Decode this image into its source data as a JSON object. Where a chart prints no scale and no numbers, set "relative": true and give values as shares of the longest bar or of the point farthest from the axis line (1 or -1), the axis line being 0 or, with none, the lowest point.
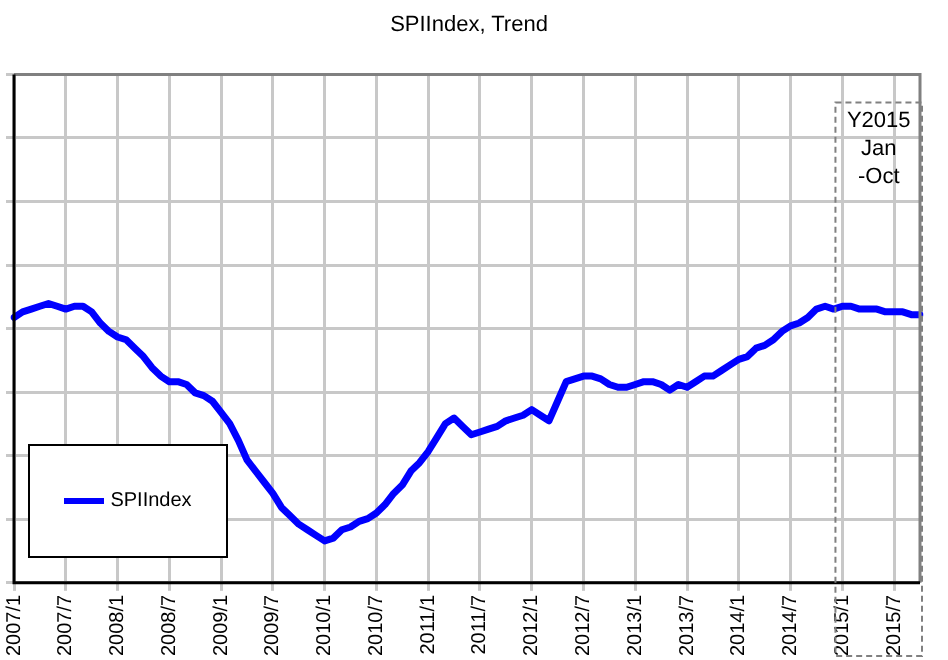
{
  "chart_data": {
    "type": "line",
    "title": "SPIIndex, Trend",
    "relative": true,
    "grid": true,
    "legend": "bottom left",
    "marker": "none",
    "line_style": "solid",
    "categories": [
      "2007/1",
      null,
      null,
      null,
      null,
      null,
      "2007/7",
      null,
      null,
      null,
      null,
      null,
      "2008/1",
      null,
      null,
      null,
      null,
      null,
      "2008/7",
      null,
      null,
      null,
      null,
      null,
      "2009/1",
      null,
      null,
      null,
      null,
      null,
      "2009/7",
      null,
      null,
      null,
      null,
      null,
      "2010/1",
      null,
      null,
      null,
      null,
      null,
      "2010/7",
      null,
      null,
      null,
      null,
      null,
      "2011/1",
      null,
      null,
      null,
      null,
      null,
      "2011/7",
      null,
      null,
      null,
      null,
      null,
      "2012/1",
      null,
      null,
      null,
      null,
      null,
      "2012/7",
      null,
      null,
      null,
      null,
      null,
      "2013/1",
      null,
      null,
      null,
      null,
      null,
      "2013/7",
      null,
      null,
      null,
      null,
      null,
      "2014/1",
      null,
      null,
      null,
      null,
      null,
      "2014/7",
      null,
      null,
      null,
      null,
      null,
      "2015/1",
      null,
      null,
      null,
      null,
      null,
      "2015/7",
      null,
      null,
      null
    ],
    "series": [
      {
        "name": "SPIIndex",
        "color": "#0000ff",
        "values": [
          0.95,
          0.97,
          0.98,
          0.99,
          1.0,
          0.99,
          0.98,
          0.99,
          0.99,
          0.97,
          0.93,
          0.9,
          0.88,
          0.87,
          0.84,
          0.81,
          0.77,
          0.74,
          0.72,
          0.72,
          0.71,
          0.68,
          0.67,
          0.65,
          0.61,
          0.57,
          0.51,
          0.44,
          0.4,
          0.36,
          0.32,
          0.27,
          0.24,
          0.21,
          0.19,
          0.17,
          0.15,
          0.16,
          0.19,
          0.2,
          0.22,
          0.23,
          0.25,
          0.28,
          0.32,
          0.35,
          0.4,
          0.43,
          0.47,
          0.52,
          0.57,
          0.59,
          0.56,
          0.53,
          0.54,
          0.55,
          0.56,
          0.58,
          0.59,
          0.6,
          0.62,
          0.6,
          0.58,
          0.65,
          0.72,
          0.73,
          0.74,
          0.74,
          0.73,
          0.71,
          0.7,
          0.7,
          0.71,
          0.72,
          0.72,
          0.71,
          0.69,
          0.71,
          0.7,
          0.72,
          0.74,
          0.74,
          0.76,
          0.78,
          0.8,
          0.81,
          0.84,
          0.85,
          0.87,
          0.9,
          0.92,
          0.93,
          0.95,
          0.98,
          0.99,
          0.98,
          0.99,
          0.99,
          0.98,
          0.98,
          0.98,
          0.97,
          0.97,
          0.97,
          0.96,
          0.96
        ]
      }
    ],
    "annotations": [
      "Y2015 Jan -Oct"
    ]
  }
}
